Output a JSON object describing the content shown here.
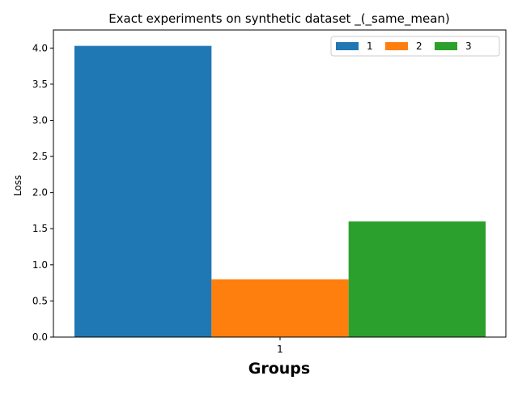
{
  "chart_data": {
    "type": "bar",
    "title": "Exact experiments on synthetic dataset _(_same_mean)",
    "xlabel": "Groups",
    "ylabel": "Loss",
    "categories": [
      "1"
    ],
    "ylim": [
      0,
      4.25
    ],
    "yticks": [
      0.0,
      0.5,
      1.0,
      1.5,
      2.0,
      2.5,
      3.0,
      3.5,
      4.0
    ],
    "ytick_labels": [
      "0.0",
      "0.5",
      "1.0",
      "1.5",
      "2.0",
      "2.5",
      "3.0",
      "3.5",
      "4.0"
    ],
    "grid": false,
    "legend_position": "top-right",
    "series": [
      {
        "name": "1",
        "values": [
          4.03
        ],
        "color": "#1f77b4"
      },
      {
        "name": "2",
        "values": [
          0.8
        ],
        "color": "#ff7f0e"
      },
      {
        "name": "3",
        "values": [
          1.6
        ],
        "color": "#2ca02c"
      }
    ]
  }
}
